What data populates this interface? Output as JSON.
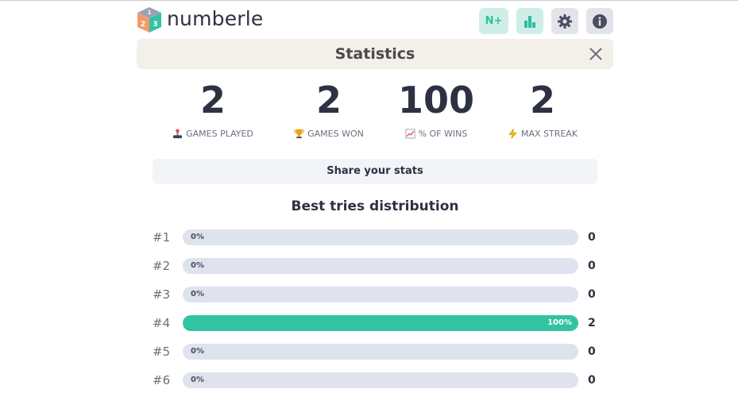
{
  "app": {
    "name": "numberle",
    "logo_digits": [
      "1",
      "2",
      "3"
    ]
  },
  "header": {
    "nplus_label": "N+",
    "icons": [
      "stats-icon",
      "gear-icon",
      "info-icon"
    ]
  },
  "panel": {
    "title": "Statistics"
  },
  "stats": [
    {
      "value": "2",
      "label": "GAMES PLAYED",
      "icon": "joystick-icon"
    },
    {
      "value": "2",
      "label": "GAMES WON",
      "icon": "trophy-icon"
    },
    {
      "value": "100",
      "label": "% OF WINS",
      "icon": "chart-up-icon"
    },
    {
      "value": "2",
      "label": "MAX STREAK",
      "icon": "lightning-icon"
    }
  ],
  "share_label": "Share your stats",
  "distribution": {
    "title": "Best tries distribution",
    "rows": [
      {
        "label": "#1",
        "percent": 0,
        "percent_label": "0%",
        "count": "0"
      },
      {
        "label": "#2",
        "percent": 0,
        "percent_label": "0%",
        "count": "0"
      },
      {
        "label": "#3",
        "percent": 0,
        "percent_label": "0%",
        "count": "0"
      },
      {
        "label": "#4",
        "percent": 100,
        "percent_label": "100%",
        "count": "2"
      },
      {
        "label": "#5",
        "percent": 0,
        "percent_label": "0%",
        "count": "0"
      },
      {
        "label": "#6",
        "percent": 0,
        "percent_label": "0%",
        "count": "0"
      }
    ]
  },
  "colors": {
    "accent": "#31c3a2",
    "track": "#dfe3ee",
    "titlebar": "#f3f0ea"
  }
}
